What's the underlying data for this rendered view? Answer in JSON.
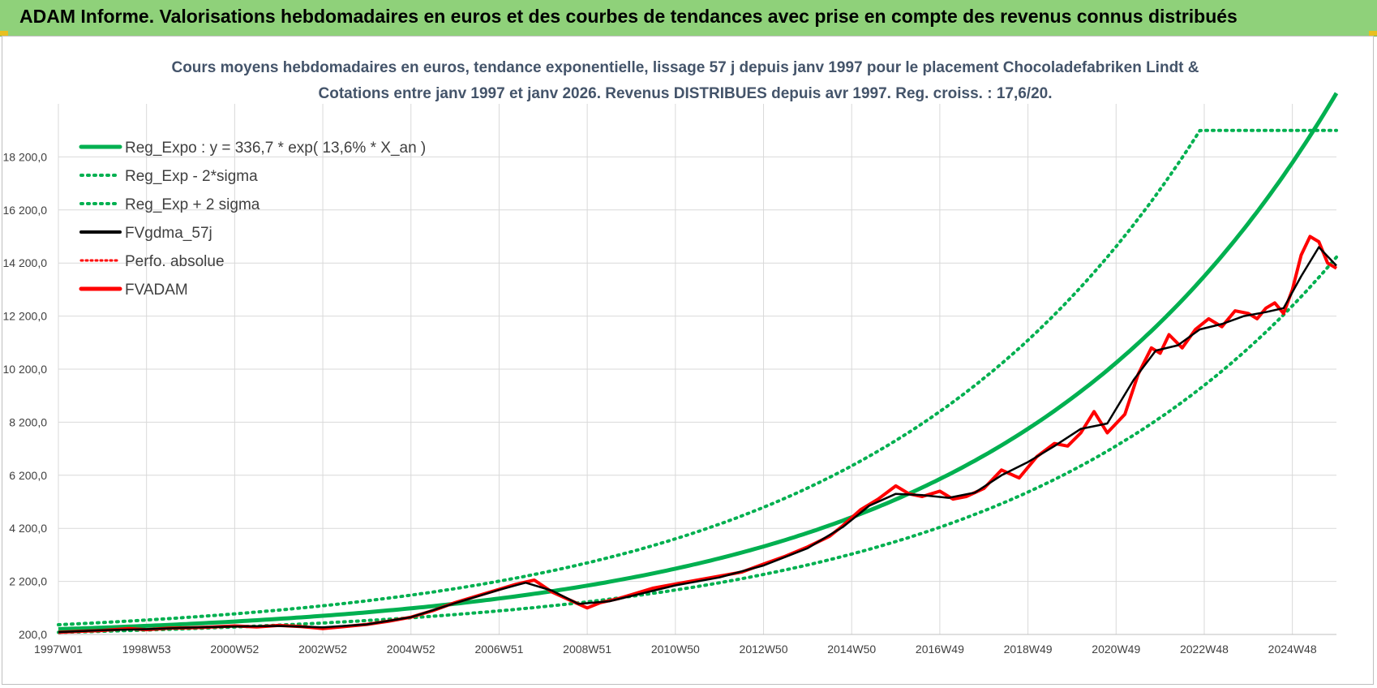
{
  "banner": {
    "title": "ADAM Informe. Valorisations hebdomadaires en euros et des courbes de tendances avec prise en compte des revenus connus distribués"
  },
  "colors": {
    "green": "#00b050",
    "black": "#000000",
    "red": "#ff0000",
    "banner": "#8fd17a"
  },
  "chart_data": {
    "type": "line",
    "title": "Cours moyens hebdomadaires en euros, tendance exponentielle, lissage 57 j depuis janv 1997 pour le placement Chocoladefabriken Lindt &",
    "subtitle": "Cotations entre janv 1997 et janv 2026. Revenus DISTRIBUES depuis avr 1997. Reg. croiss. : 17,6/20.",
    "xlabel": "",
    "ylabel": "",
    "xlim": [
      1997.0,
      2026.0
    ],
    "ylim": [
      200,
      20200
    ],
    "y_ticks": [
      200,
      2200,
      4200,
      6200,
      8200,
      10200,
      12200,
      14200,
      16200,
      18200
    ],
    "y_tick_labels": [
      "200,0",
      "2 200,0",
      "4 200,0",
      "6 200,0",
      "8 200,0",
      "10 200,0",
      "12 200,0",
      "14 200,0",
      "16 200,0",
      "18 200,0"
    ],
    "x_ticks": [
      1997.0,
      1999.0,
      2001.0,
      2003.0,
      2005.0,
      2007.0,
      2009.0,
      2011.0,
      2013.0,
      2015.0,
      2017.0,
      2019.0,
      2021.0,
      2023.0,
      2025.0
    ],
    "x_tick_labels": [
      "1997W01",
      "1998W53",
      "2000W52",
      "2002W52",
      "2004W52",
      "2006W51",
      "2008W51",
      "2010W50",
      "2012W50",
      "2014W50",
      "2016W49",
      "2018W49",
      "2020W49",
      "2022W48",
      "2024W48"
    ],
    "regression": {
      "a": 336.7,
      "b": 0.136,
      "lower_factor": 0.7,
      "upper_factor": 1.42,
      "upper_cap": 19200
    },
    "legend": [
      {
        "label": "Reg_Expo : y = 336,7 * exp( 13,6% *  X_an )",
        "style": "solid-green"
      },
      {
        "label": "Reg_Exp - 2*sigma",
        "style": "dotted-green"
      },
      {
        "label": "Reg_Exp + 2 sigma",
        "style": "dotted-green"
      },
      {
        "label": "FVgdma_57j",
        "style": "solid-black"
      },
      {
        "label": "Perfo. absolue",
        "style": "dotted-red"
      },
      {
        "label": "FVADAM",
        "style": "solid-red"
      }
    ],
    "series": [
      {
        "name": "FVADAM",
        "x": [
          1997.0,
          1997.5,
          1998.0,
          1998.6,
          1999.0,
          1999.5,
          2000.0,
          2000.5,
          2001.0,
          2001.5,
          2002.0,
          2002.5,
          2003.0,
          2003.5,
          2004.0,
          2004.5,
          2005.0,
          2005.5,
          2006.0,
          2006.5,
          2007.0,
          2007.4,
          2007.8,
          2008.2,
          2008.6,
          2009.0,
          2009.3,
          2009.7,
          2010.0,
          2010.5,
          2011.0,
          2011.5,
          2012.0,
          2012.5,
          2013.0,
          2013.5,
          2014.0,
          2014.5,
          2014.8,
          2015.2,
          2015.6,
          2016.0,
          2016.3,
          2016.6,
          2017.0,
          2017.3,
          2017.6,
          2018.0,
          2018.4,
          2018.8,
          2019.2,
          2019.6,
          2019.9,
          2020.2,
          2020.5,
          2020.8,
          2021.2,
          2021.5,
          2021.8,
          2022.0,
          2022.2,
          2022.5,
          2022.8,
          2023.1,
          2023.4,
          2023.7,
          2024.0,
          2024.2,
          2024.4,
          2024.6,
          2024.8,
          2025.0,
          2025.2,
          2025.4,
          2025.6,
          2025.8,
          2026.0
        ],
        "y": [
          280,
          320,
          350,
          420,
          380,
          440,
          450,
          480,
          520,
          480,
          540,
          500,
          420,
          500,
          580,
          700,
          850,
          1100,
          1400,
          1650,
          1900,
          2100,
          2250,
          1800,
          1500,
          1200,
          1400,
          1550,
          1700,
          1950,
          2100,
          2250,
          2400,
          2550,
          2850,
          3150,
          3500,
          3900,
          4300,
          4900,
          5300,
          5800,
          5500,
          5400,
          5600,
          5300,
          5400,
          5700,
          6400,
          6100,
          6900,
          7400,
          7300,
          7800,
          8600,
          7800,
          8500,
          10000,
          11000,
          10800,
          11500,
          11000,
          11700,
          12100,
          11800,
          12400,
          12300,
          12100,
          12500,
          12700,
          12300,
          13200,
          14500,
          15200,
          15000,
          14200,
          14000
        ]
      },
      {
        "name": "FVgdma_57j",
        "x": [
          1997.0,
          1998.0,
          1999.0,
          2000.0,
          2001.0,
          2002.0,
          2003.0,
          2004.0,
          2005.0,
          2006.0,
          2007.0,
          2007.6,
          2008.2,
          2008.8,
          2009.5,
          2010.0,
          2011.0,
          2012.0,
          2013.0,
          2014.0,
          2014.8,
          2015.4,
          2016.0,
          2016.6,
          2017.2,
          2017.8,
          2018.4,
          2019.0,
          2019.6,
          2020.2,
          2020.8,
          2021.4,
          2021.9,
          2022.4,
          2022.9,
          2023.4,
          2023.9,
          2024.4,
          2024.8,
          2025.2,
          2025.6,
          2026.0
        ],
        "y": [
          290,
          360,
          400,
          460,
          500,
          520,
          470,
          580,
          850,
          1380,
          1880,
          2150,
          1850,
          1350,
          1450,
          1650,
          2050,
          2350,
          2800,
          3450,
          4250,
          5050,
          5500,
          5450,
          5350,
          5550,
          6200,
          6700,
          7300,
          7950,
          8150,
          9800,
          10900,
          11100,
          11700,
          11900,
          12200,
          12350,
          12500,
          13700,
          14800,
          14100
        ]
      }
    ]
  }
}
